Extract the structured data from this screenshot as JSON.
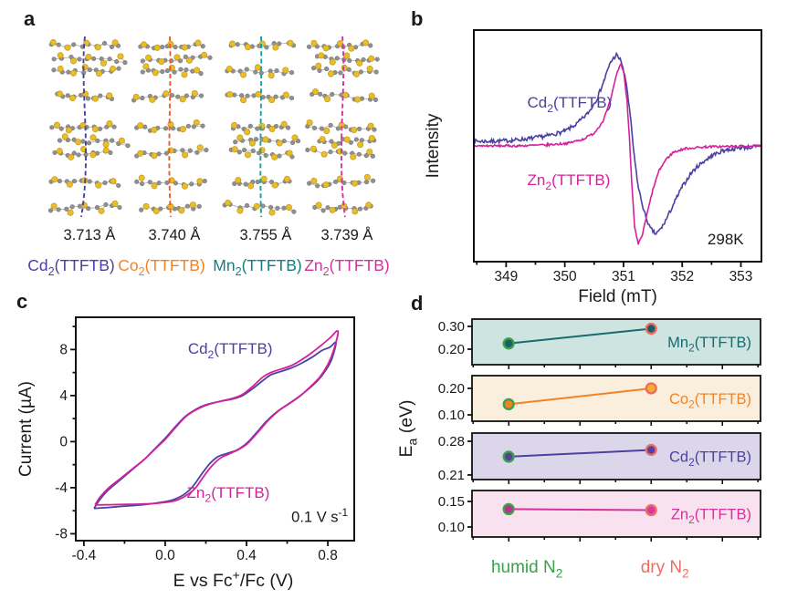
{
  "panel_letters": {
    "a": "a",
    "b": "b",
    "c": "c",
    "d": "d"
  },
  "panel_a": {
    "description": "Crystal-structure TTF stacks with pi-stacking distances",
    "atom_colors": {
      "carbon": "#909090",
      "carbon_stroke": "#6d6d6d",
      "sulfur": "#e8bd27",
      "sulfur_stroke": "#b8921a",
      "bond": "#b5b5b5"
    },
    "stacks": [
      {
        "compound": "Cd_2(TTFTB)",
        "distance": "3.713 Å",
        "label_color": "#4a41a1",
        "line_color": "#4a41a1"
      },
      {
        "compound": "Co_2(TTFTB)",
        "distance": "3.740 Å",
        "label_color": "#f58220",
        "line_color": "#f15a22"
      },
      {
        "compound": "Mn_2(TTFTB)",
        "distance": "3.755 Å",
        "label_color": "#0e7f82",
        "line_color": "#12a19e"
      },
      {
        "compound": "Zn_2(TTFTB)",
        "distance": "3.739 Å",
        "label_color": "#d4319c",
        "line_color": "#d4319c"
      }
    ]
  },
  "chart_data": [
    {
      "panel": "b",
      "type": "line",
      "description": "EPR spectra at room temperature",
      "xlabel": "Field (mT)",
      "ylabel": "Intensity",
      "xlim": [
        348.45,
        353.35
      ],
      "ylim": [
        -1.27,
        1.27
      ],
      "xticks": [
        {
          "v": 349,
          "label": "349"
        },
        {
          "v": 350,
          "label": "350"
        },
        {
          "v": 351,
          "label": "351"
        },
        {
          "v": 352,
          "label": "352"
        },
        {
          "v": 353,
          "label": "353"
        }
      ],
      "xminor_step": 0.5,
      "annotation": {
        "text": "298K",
        "x": 352.74,
        "y": -1.02,
        "color": "#1a1a1a"
      },
      "curve_labels": [
        {
          "text": "Cd_2(TTFTB)",
          "color": "#4a41a1",
          "x": 349.36,
          "y": 0.48
        },
        {
          "text": "Zn_2(TTFTB)",
          "color": "#d4219b",
          "x": 349.36,
          "y": -0.37
        }
      ],
      "series": [
        {
          "name": "Cd_2(TTFTB)",
          "color": "#4a41a1",
          "noise": 0.022,
          "points": [
            [
              348.45,
              0.05
            ],
            [
              348.8,
              0.05
            ],
            [
              349.1,
              0.06
            ],
            [
              349.4,
              0.08
            ],
            [
              349.7,
              0.11
            ],
            [
              350.0,
              0.16
            ],
            [
              350.2,
              0.24
            ],
            [
              350.4,
              0.36
            ],
            [
              350.55,
              0.52
            ],
            [
              350.67,
              0.72
            ],
            [
              350.78,
              0.92
            ],
            [
              350.88,
              1.0
            ],
            [
              350.96,
              0.93
            ],
            [
              351.05,
              0.68
            ],
            [
              351.12,
              0.3
            ],
            [
              351.18,
              -0.1
            ],
            [
              351.25,
              -0.45
            ],
            [
              351.35,
              -0.72
            ],
            [
              351.45,
              -0.9
            ],
            [
              351.55,
              -0.97
            ],
            [
              351.65,
              -0.9
            ],
            [
              351.75,
              -0.78
            ],
            [
              351.88,
              -0.6
            ],
            [
              352.0,
              -0.45
            ],
            [
              352.15,
              -0.3
            ],
            [
              352.3,
              -0.2
            ],
            [
              352.5,
              -0.11
            ],
            [
              352.7,
              -0.05
            ],
            [
              353.0,
              -0.02
            ],
            [
              353.35,
              -0.01
            ]
          ]
        },
        {
          "name": "Zn_2(TTFTB)",
          "color": "#d4219b",
          "noise": 0.012,
          "points": [
            [
              348.45,
              0.0
            ],
            [
              349.2,
              0.0
            ],
            [
              349.7,
              0.01
            ],
            [
              350.05,
              0.03
            ],
            [
              350.3,
              0.07
            ],
            [
              350.5,
              0.14
            ],
            [
              350.65,
              0.27
            ],
            [
              350.78,
              0.5
            ],
            [
              350.88,
              0.78
            ],
            [
              350.95,
              0.9
            ],
            [
              351.0,
              0.82
            ],
            [
              351.06,
              0.5
            ],
            [
              351.1,
              0.1
            ],
            [
              351.14,
              -0.4
            ],
            [
              351.19,
              -0.9
            ],
            [
              351.25,
              -1.08
            ],
            [
              351.32,
              -0.98
            ],
            [
              351.4,
              -0.75
            ],
            [
              351.5,
              -0.48
            ],
            [
              351.6,
              -0.28
            ],
            [
              351.72,
              -0.15
            ],
            [
              351.85,
              -0.07
            ],
            [
              352.05,
              -0.03
            ],
            [
              352.4,
              -0.01
            ],
            [
              353.35,
              0.0
            ]
          ]
        }
      ]
    },
    {
      "panel": "c",
      "type": "line",
      "description": "Cyclic voltammograms",
      "xlabel": "E vs Fc^+/Fc (V)",
      "ylabel": "Current (µA)",
      "xlim": [
        -0.44,
        0.93
      ],
      "ylim": [
        -8.6,
        10.8
      ],
      "xticks": [
        {
          "v": -0.4,
          "label": "-0.4"
        },
        {
          "v": 0.0,
          "label": "0.0"
        },
        {
          "v": 0.4,
          "label": "0.4"
        },
        {
          "v": 0.8,
          "label": "0.8"
        }
      ],
      "xminor_step": 0.2,
      "yticks": [
        {
          "v": -8,
          "label": "-8"
        },
        {
          "v": -4,
          "label": "-4"
        },
        {
          "v": 0,
          "label": "0"
        },
        {
          "v": 4,
          "label": "4"
        },
        {
          "v": 8,
          "label": "8"
        }
      ],
      "yminor_step": 2,
      "annotation": {
        "text": "0.1 V s^-1",
        "x": 0.76,
        "y": -6.5,
        "color": "#1a1a1a"
      },
      "curve_labels": [
        {
          "text": "Cd_2(TTFTB)",
          "color": "#4a41a1",
          "x": 0.32,
          "y": 8.1
        },
        {
          "text": "Zn_2(TTFTB)",
          "color": "#d4219b",
          "x": 0.31,
          "y": -4.4
        }
      ],
      "series": [
        {
          "name": "Cd_2(TTFTB)",
          "color": "#4a41a1",
          "closed": true,
          "points": [
            [
              -0.35,
              -5.8
            ],
            [
              -0.32,
              -5.0
            ],
            [
              -0.28,
              -4.2
            ],
            [
              -0.22,
              -3.3
            ],
            [
              -0.16,
              -2.4
            ],
            [
              -0.1,
              -1.5
            ],
            [
              -0.05,
              -0.6
            ],
            [
              0.0,
              0.3
            ],
            [
              0.05,
              1.3
            ],
            [
              0.1,
              2.2
            ],
            [
              0.15,
              2.8
            ],
            [
              0.2,
              3.2
            ],
            [
              0.27,
              3.5
            ],
            [
              0.33,
              3.7
            ],
            [
              0.38,
              4.0
            ],
            [
              0.43,
              4.6
            ],
            [
              0.48,
              5.3
            ],
            [
              0.52,
              5.8
            ],
            [
              0.57,
              6.1
            ],
            [
              0.62,
              6.4
            ],
            [
              0.67,
              6.8
            ],
            [
              0.72,
              7.3
            ],
            [
              0.77,
              7.9
            ],
            [
              0.81,
              8.2
            ],
            [
              0.84,
              8.6
            ],
            [
              0.82,
              7.2
            ],
            [
              0.79,
              6.2
            ],
            [
              0.75,
              5.3
            ],
            [
              0.7,
              4.5
            ],
            [
              0.65,
              3.8
            ],
            [
              0.6,
              3.2
            ],
            [
              0.55,
              2.6
            ],
            [
              0.5,
              1.8
            ],
            [
              0.46,
              1.0
            ],
            [
              0.42,
              0.2
            ],
            [
              0.39,
              -0.3
            ],
            [
              0.35,
              -0.75
            ],
            [
              0.3,
              -1.05
            ],
            [
              0.26,
              -1.3
            ],
            [
              0.22,
              -1.9
            ],
            [
              0.18,
              -2.8
            ],
            [
              0.14,
              -3.8
            ],
            [
              0.1,
              -4.5
            ],
            [
              0.06,
              -4.9
            ],
            [
              0.02,
              -5.15
            ],
            [
              -0.05,
              -5.35
            ],
            [
              -0.12,
              -5.5
            ],
            [
              -0.2,
              -5.6
            ],
            [
              -0.28,
              -5.72
            ],
            [
              -0.35,
              -5.8
            ]
          ]
        },
        {
          "name": "Zn_2(TTFTB)",
          "color": "#d4219b",
          "closed": true,
          "points": [
            [
              -0.345,
              -5.5
            ],
            [
              -0.32,
              -4.8
            ],
            [
              -0.28,
              -4.05
            ],
            [
              -0.22,
              -3.2
            ],
            [
              -0.16,
              -2.35
            ],
            [
              -0.1,
              -1.5
            ],
            [
              -0.05,
              -0.65
            ],
            [
              0.0,
              0.2
            ],
            [
              0.05,
              1.2
            ],
            [
              0.1,
              2.15
            ],
            [
              0.15,
              2.75
            ],
            [
              0.2,
              3.15
            ],
            [
              0.27,
              3.5
            ],
            [
              0.33,
              3.75
            ],
            [
              0.38,
              4.1
            ],
            [
              0.43,
              4.8
            ],
            [
              0.48,
              5.6
            ],
            [
              0.52,
              6.0
            ],
            [
              0.57,
              6.3
            ],
            [
              0.62,
              6.6
            ],
            [
              0.67,
              7.1
            ],
            [
              0.72,
              7.7
            ],
            [
              0.77,
              8.4
            ],
            [
              0.81,
              9.0
            ],
            [
              0.85,
              9.6
            ],
            [
              0.83,
              8.0
            ],
            [
              0.8,
              6.7
            ],
            [
              0.76,
              5.6
            ],
            [
              0.71,
              4.7
            ],
            [
              0.66,
              3.9
            ],
            [
              0.61,
              3.3
            ],
            [
              0.56,
              2.7
            ],
            [
              0.51,
              1.9
            ],
            [
              0.47,
              1.1
            ],
            [
              0.43,
              0.3
            ],
            [
              0.4,
              -0.25
            ],
            [
              0.36,
              -0.7
            ],
            [
              0.31,
              -1.1
            ],
            [
              0.27,
              -1.45
            ],
            [
              0.23,
              -2.1
            ],
            [
              0.19,
              -3.0
            ],
            [
              0.15,
              -4.0
            ],
            [
              0.11,
              -4.6
            ],
            [
              0.07,
              -5.0
            ],
            [
              0.03,
              -5.2
            ],
            [
              -0.04,
              -5.35
            ],
            [
              -0.11,
              -5.42
            ],
            [
              -0.19,
              -5.45
            ],
            [
              -0.27,
              -5.48
            ],
            [
              -0.345,
              -5.5
            ]
          ]
        }
      ]
    },
    {
      "panel": "d",
      "type": "slope",
      "description": "Activation energies under humid and dry N2",
      "ylabel": "E_a (eV)",
      "categories": [
        {
          "key": "humid",
          "text": "humid N_2",
          "color": "#3aa04a"
        },
        {
          "key": "dry",
          "text": "dry N_2",
          "color": "#ed6d63"
        }
      ],
      "marker_rings": {
        "humid": "#3aa04a",
        "dry": "#ed6d63"
      },
      "strips": [
        {
          "name": "Mn_2(TTFTB)",
          "line_color": "#176b6e",
          "bg": "#cde4e1",
          "ylim": [
            0.132,
            0.332
          ],
          "yticks": [
            {
              "v": 0.2,
              "label": "0.20"
            },
            {
              "v": 0.3,
              "label": "0.30"
            }
          ],
          "values": {
            "humid": 0.225,
            "dry": 0.29
          },
          "marker_fill": {
            "humid": "#1b5f63",
            "dry": "#1b5f63"
          }
        },
        {
          "name": "Co_2(TTFTB)",
          "line_color": "#f08428",
          "bg": "#faeedd",
          "ylim": [
            0.076,
            0.248
          ],
          "yticks": [
            {
              "v": 0.1,
              "label": "0.10"
            },
            {
              "v": 0.2,
              "label": "0.20"
            }
          ],
          "values": {
            "humid": 0.14,
            "dry": 0.2
          },
          "marker_fill": {
            "humid": "#f58220",
            "dry": "#f0b02c"
          }
        },
        {
          "name": "Cd_2(TTFTB)",
          "line_color": "#4a41a1",
          "bg": "#dcd6ea",
          "ylim": [
            0.2005,
            0.297
          ],
          "yticks": [
            {
              "v": 0.21,
              "label": "0.21"
            },
            {
              "v": 0.28,
              "label": "0.28"
            }
          ],
          "values": {
            "humid": 0.248,
            "dry": 0.262
          },
          "marker_fill": {
            "humid": "#5a3f9e",
            "dry": "#5a3f9e"
          }
        },
        {
          "name": "Zn_2(TTFTB)",
          "line_color": "#d4319c",
          "bg": "#f8e2ef",
          "ylim": [
            0.0804,
            0.1714
          ],
          "yticks": [
            {
              "v": 0.1,
              "label": "0.10"
            },
            {
              "v": 0.15,
              "label": "0.15"
            }
          ],
          "values": {
            "humid": 0.135,
            "dry": 0.133
          },
          "marker_fill": {
            "humid": "#c02c92",
            "dry": "#d43a9b"
          }
        }
      ]
    }
  ]
}
